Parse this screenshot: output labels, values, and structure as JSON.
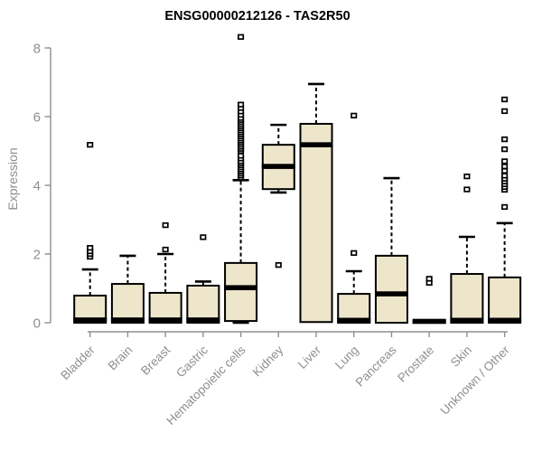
{
  "title": "ENSG00000212126 - TAS2R50",
  "chart_data": {
    "type": "boxplot",
    "title": "ENSG00000212126 - TAS2R50",
    "xlabel": "",
    "ylabel": "Expression",
    "ylim": [
      0,
      8
    ],
    "yticks": [
      0,
      2,
      4,
      6,
      8
    ],
    "grid": false,
    "legend_position": "none",
    "categories": [
      "Bladder",
      "Brain",
      "Breast",
      "Gastric",
      "Hematopoietic cells",
      "Kidney",
      "Liver",
      "Lung",
      "Pancreas",
      "Prostate",
      "Skin",
      "Unknown / Other"
    ],
    "boxes": [
      {
        "category": "Bladder",
        "whisker_low": 0,
        "q1": 0,
        "median": 0.08,
        "q3": 0.79,
        "whisker_high": 1.55,
        "outliers": [
          1.92,
          2.0,
          2.08,
          2.18,
          5.18
        ]
      },
      {
        "category": "Brain",
        "whisker_low": 0,
        "q1": 0,
        "median": 0.08,
        "q3": 1.13,
        "whisker_high": 1.95,
        "outliers": []
      },
      {
        "category": "Breast",
        "whisker_low": 0,
        "q1": 0,
        "median": 0.08,
        "q3": 0.87,
        "whisker_high": 2.0,
        "outliers": [
          2.13,
          2.84
        ]
      },
      {
        "category": "Gastric",
        "whisker_low": 0,
        "q1": 0,
        "median": 0.08,
        "q3": 1.08,
        "whisker_high": 1.2,
        "outliers": [
          2.49
        ]
      },
      {
        "category": "Hematopoietic cells",
        "whisker_low": 0,
        "q1": 0.05,
        "median": 1.02,
        "q3": 1.74,
        "whisker_high": 4.15,
        "outliers": [
          4.22,
          4.28,
          4.34,
          4.4,
          4.46,
          4.52,
          4.58,
          4.64,
          4.7,
          4.78,
          4.86,
          5.0,
          5.06,
          5.12,
          5.18,
          5.24,
          5.3,
          5.36,
          5.42,
          5.48,
          5.54,
          5.6,
          5.66,
          5.72,
          5.78,
          5.84,
          5.9,
          5.96,
          6.05,
          6.15,
          6.25,
          6.35,
          8.32
        ]
      },
      {
        "category": "Kidney",
        "whisker_low": 3.79,
        "q1": 3.89,
        "median": 4.55,
        "q3": 5.18,
        "whisker_high": 5.76,
        "outliers": [
          1.68
        ]
      },
      {
        "category": "Liver",
        "whisker_low": 0,
        "q1": 0.02,
        "median": 5.18,
        "q3": 5.79,
        "whisker_high": 6.95,
        "outliers": []
      },
      {
        "category": "Lung",
        "whisker_low": 0,
        "q1": 0,
        "median": 0.07,
        "q3": 0.84,
        "whisker_high": 1.5,
        "outliers": [
          2.03,
          6.03
        ]
      },
      {
        "category": "Pancreas",
        "whisker_low": 0,
        "q1": 0,
        "median": 0.84,
        "q3": 1.95,
        "whisker_high": 4.21,
        "outliers": []
      },
      {
        "category": "Prostate",
        "whisker_low": 0,
        "q1": 0,
        "median": 0.04,
        "q3": 0.05,
        "whisker_high": 0.05,
        "outliers": [
          1.16,
          1.28
        ]
      },
      {
        "category": "Skin",
        "whisker_low": 0,
        "q1": 0,
        "median": 0.07,
        "q3": 1.42,
        "whisker_high": 2.5,
        "outliers": [
          3.88,
          4.26
        ]
      },
      {
        "category": "Unknown / Other",
        "whisker_low": 0,
        "q1": 0,
        "median": 0.07,
        "q3": 1.32,
        "whisker_high": 2.9,
        "outliers": [
          3.37,
          3.87,
          3.95,
          4.03,
          4.11,
          4.19,
          4.28,
          4.42,
          4.55,
          4.7,
          5.05,
          5.34,
          6.16,
          6.5
        ]
      }
    ],
    "colors": {
      "box_fill": "#EDE6CB",
      "box_stroke": "#000000",
      "median": "#000000",
      "whisker": "#000000",
      "outlier_stroke": "#000000",
      "axis": "#8F8F8F",
      "tick_label": "#8F8F8F",
      "title": "#000000",
      "background": "#FFFFFF"
    }
  }
}
